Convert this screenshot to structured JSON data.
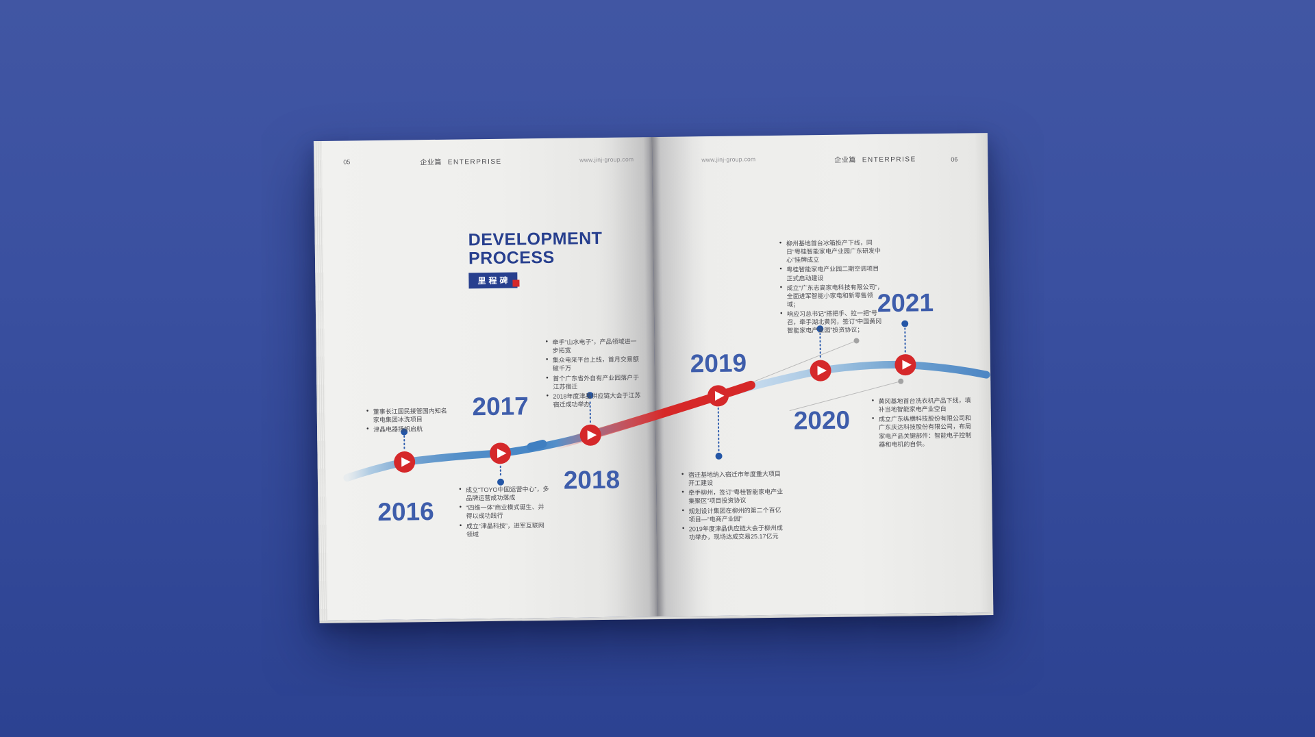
{
  "left_page": {
    "page_number": "05",
    "section_cn": "企业篇",
    "section_en": "ENTERPRISE",
    "website": "www.jinj-group.com"
  },
  "right_page": {
    "page_number": "06",
    "section_cn": "企业篇",
    "section_en": "ENTERPRISE",
    "website": "www.jinj-group.com"
  },
  "title": {
    "line1": "DEVELOPMENT",
    "line2": "PROCESS",
    "subtitle": "里程碑"
  },
  "colors": {
    "accent_red": "#d5282a",
    "title_blue": "#273f8e",
    "year_blue": "#3e5dab",
    "curve_blue": "#4d86c4",
    "curve_light_blue": "#c6dbee",
    "background_blue": "#3a50a0"
  },
  "icons": {
    "marker": "play-icon"
  },
  "milestones": [
    {
      "year": "2016",
      "bullets": [
        "董事长江国民接管国内知名家电集团冰洗项目",
        "津晶电器扬帆启航"
      ]
    },
    {
      "year": "2017",
      "bullets": [
        "成立“TOYO中国运营中心”，多品牌运营成功落成",
        "“四维一体”商业模式诞生、并得以成功践行",
        "成立“津晶科技”，进军互联网领域"
      ]
    },
    {
      "year": "2018",
      "bullets": [
        "牵手“山水电子”，产品领域进一步拓宽",
        "集众电采平台上线，首月交易额破千万",
        "首个广东省外自有产业园落户于江苏宿迁",
        "2018年度津晶供应链大会于江苏宿迁成功举办"
      ]
    },
    {
      "year": "2019",
      "bullets": [
        "宿迁基地纳入宿迁市年度重大项目开工建设",
        "牵手柳州，签订“粤桂智能家电产业集聚区”项目投资协议",
        "规划设计集团在柳州的第二个百亿项目—“电商产业园”",
        "2019年度津晶供应链大会于柳州成功举办，现场达成交易25.17亿元"
      ]
    },
    {
      "year": "2020",
      "bullets": [
        "柳州基地首台冰箱投产下线，同日“粤桂智能家电产业园广东研发中心”挂牌成立",
        "粤桂智能家电产业园二期空调项目正式启动建设",
        "成立“广东志高家电科技有限公司”，全面进军智能小家电和新零售领域；",
        "响应习总书记“搭把手、拉一把”号召，牵手湖北黄冈，签订“中国黄冈智能家电产业园”投资协议；"
      ]
    },
    {
      "year": "2021",
      "bullets": [
        "黄冈基地首台洗衣机产品下线，填补当地智能家电产业空白",
        "成立广东纵横科技股份有限公司和广东庆达科技股份有限公司，布局家电产品关键部件：智能电子控制器和电机的自供。"
      ]
    }
  ]
}
